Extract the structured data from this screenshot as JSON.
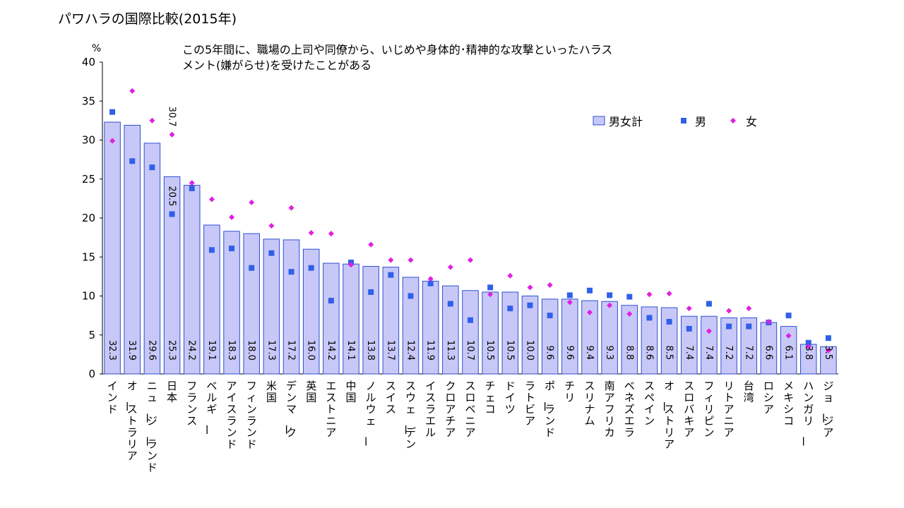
{
  "chart_data": {
    "type": "bar",
    "title": "パワハラの国際比較(2015年)",
    "subtitle_lines": [
      "この5年間に、職場の上司や同僚から、いじめや身体的･精神的な攻撃といったハラス",
      "メント(嫌がらせ)を受けたことがある"
    ],
    "y_unit": "%",
    "ylim": [
      0,
      40
    ],
    "y_ticks": [
      0,
      5,
      10,
      15,
      20,
      25,
      30,
      35,
      40
    ],
    "legend_position": "top-right",
    "colors": {
      "bar_fill": "#c8c8f8",
      "bar_stroke": "#2f4fd0",
      "male": "#3060e8",
      "female": "#e020e0"
    },
    "categories": [
      "インド",
      "オーストラリア",
      "ニュージーランド",
      "日本",
      "フランス",
      "ベルギー",
      "アイスランド",
      "フィンランド",
      "米国",
      "デンマーク",
      "英国",
      "エストニア",
      "中国",
      "ノルウェー",
      "スイス",
      "スウェーデン",
      "イスラエル",
      "クロアチア",
      "スロベニア",
      "チェコ",
      "ドイツ",
      "ラトビア",
      "ポーランド",
      "チリ",
      "スリナム",
      "南アフリカ",
      "ベネズエラ",
      "スペイン",
      "オーストリア",
      "スロバキア",
      "フィリピン",
      "リトアニア",
      "台湾",
      "ロシア",
      "メキシコ",
      "ハンガリー",
      "ジョージア"
    ],
    "series": [
      {
        "name": "男女計",
        "type": "bar",
        "values": [
          32.3,
          31.9,
          29.6,
          25.3,
          24.2,
          19.1,
          18.3,
          18.0,
          17.3,
          17.2,
          16.0,
          14.2,
          14.1,
          13.8,
          13.7,
          12.4,
          11.9,
          11.3,
          10.7,
          10.5,
          10.5,
          10.0,
          9.6,
          9.6,
          9.4,
          9.3,
          8.8,
          8.6,
          8.5,
          7.4,
          7.4,
          7.2,
          7.2,
          6.6,
          6.1,
          3.8,
          3.5
        ],
        "labels": [
          "32.3",
          "31.9",
          "29.6",
          "25.3",
          "24.2",
          "19.1",
          "18.3",
          "18.0",
          "17.3",
          "17.2",
          "16.0",
          "14.2",
          "14.1",
          "13.8",
          "13.7",
          "12.4",
          "11.9",
          "11.3",
          "10.7",
          "10.5",
          "10.5",
          "10.0",
          "9.6",
          "9.6",
          "9.4",
          "9.3",
          "8.8",
          "8.6",
          "8.5",
          "7.4",
          "7.4",
          "7.2",
          "7.2",
          "6.6",
          "6.1",
          "3.8",
          "3.5"
        ]
      },
      {
        "name": "男",
        "type": "scatter",
        "marker": "square",
        "values": [
          33.6,
          27.3,
          26.5,
          20.5,
          23.8,
          15.9,
          16.1,
          13.6,
          15.5,
          13.1,
          13.6,
          9.4,
          14.3,
          10.5,
          12.7,
          10.0,
          11.6,
          9.0,
          6.9,
          11.1,
          8.4,
          8.8,
          7.5,
          10.1,
          10.7,
          10.1,
          9.9,
          7.2,
          6.7,
          5.8,
          9.0,
          6.1,
          6.1,
          6.6,
          7.5,
          4.0,
          4.6
        ]
      },
      {
        "name": "女",
        "type": "scatter",
        "marker": "diamond",
        "values": [
          29.9,
          36.3,
          32.5,
          30.7,
          24.5,
          22.4,
          20.1,
          22.0,
          19.0,
          21.3,
          18.1,
          18.0,
          14.0,
          16.6,
          14.6,
          14.6,
          12.2,
          13.7,
          14.6,
          10.2,
          12.6,
          11.1,
          11.4,
          9.2,
          7.9,
          8.8,
          7.7,
          10.2,
          10.3,
          8.4,
          5.5,
          8.1,
          8.4,
          6.7,
          4.9,
          3.5,
          3.0
        ]
      }
    ],
    "annotations": [
      {
        "category": "日本",
        "series": "女",
        "text": "30.7"
      },
      {
        "category": "日本",
        "series": "男",
        "text": "20.5"
      }
    ]
  }
}
